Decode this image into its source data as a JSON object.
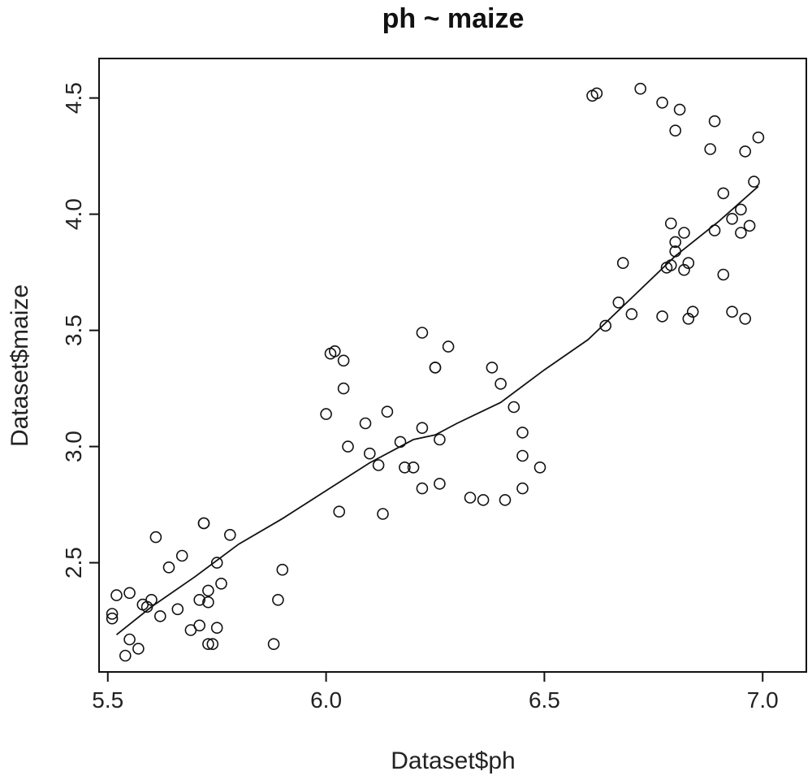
{
  "chart_data": {
    "type": "scatter",
    "title": "ph ~ maize",
    "xlabel": "Dataset$ph",
    "ylabel": "Dataset$maize",
    "xlim": [
      5.48,
      7.1
    ],
    "ylim": [
      2.03,
      4.67
    ],
    "x_ticks": [
      5.5,
      6.0,
      6.5,
      7.0
    ],
    "x_tick_labels": [
      "5.5",
      "6.0",
      "6.5",
      "7.0"
    ],
    "y_ticks": [
      2.5,
      3.0,
      3.5,
      4.0,
      4.5
    ],
    "y_tick_labels": [
      "2.5",
      "3.0",
      "3.5",
      "4.0",
      "4.5"
    ],
    "grid": false,
    "series": [
      {
        "name": "observations",
        "kind": "points",
        "points": [
          [
            5.51,
            2.28
          ],
          [
            5.51,
            2.26
          ],
          [
            5.52,
            2.36
          ],
          [
            5.54,
            2.1
          ],
          [
            5.55,
            2.17
          ],
          [
            5.55,
            2.37
          ],
          [
            5.57,
            2.13
          ],
          [
            5.58,
            2.32
          ],
          [
            5.59,
            2.31
          ],
          [
            5.6,
            2.34
          ],
          [
            5.61,
            2.61
          ],
          [
            5.62,
            2.27
          ],
          [
            5.64,
            2.48
          ],
          [
            5.66,
            2.3
          ],
          [
            5.67,
            2.53
          ],
          [
            5.69,
            2.21
          ],
          [
            5.71,
            2.23
          ],
          [
            5.71,
            2.34
          ],
          [
            5.72,
            2.67
          ],
          [
            5.72,
            2.67
          ],
          [
            5.73,
            2.15
          ],
          [
            5.73,
            2.33
          ],
          [
            5.73,
            2.38
          ],
          [
            5.74,
            2.15
          ],
          [
            5.75,
            2.5
          ],
          [
            5.75,
            2.22
          ],
          [
            5.76,
            2.41
          ],
          [
            5.78,
            2.62
          ],
          [
            5.88,
            2.15
          ],
          [
            5.89,
            2.34
          ],
          [
            5.9,
            2.47
          ],
          [
            6.0,
            3.14
          ],
          [
            6.01,
            3.4
          ],
          [
            6.02,
            3.41
          ],
          [
            6.03,
            2.72
          ],
          [
            6.04,
            3.37
          ],
          [
            6.04,
            3.25
          ],
          [
            6.05,
            3.0
          ],
          [
            6.09,
            3.1
          ],
          [
            6.1,
            2.97
          ],
          [
            6.12,
            2.92
          ],
          [
            6.13,
            2.71
          ],
          [
            6.14,
            3.15
          ],
          [
            6.17,
            3.02
          ],
          [
            6.18,
            2.91
          ],
          [
            6.2,
            2.91
          ],
          [
            6.22,
            3.08
          ],
          [
            6.22,
            2.82
          ],
          [
            6.22,
            3.49
          ],
          [
            6.25,
            3.34
          ],
          [
            6.25,
            3.34
          ],
          [
            6.26,
            3.03
          ],
          [
            6.26,
            2.84
          ],
          [
            6.28,
            3.43
          ],
          [
            6.33,
            2.78
          ],
          [
            6.36,
            2.77
          ],
          [
            6.38,
            3.34
          ],
          [
            6.4,
            3.27
          ],
          [
            6.41,
            2.77
          ],
          [
            6.43,
            3.17
          ],
          [
            6.45,
            3.06
          ],
          [
            6.45,
            2.96
          ],
          [
            6.45,
            2.82
          ],
          [
            6.49,
            2.91
          ],
          [
            6.61,
            4.51
          ],
          [
            6.62,
            4.52
          ],
          [
            6.64,
            3.52
          ],
          [
            6.67,
            3.62
          ],
          [
            6.68,
            3.79
          ],
          [
            6.7,
            3.57
          ],
          [
            6.72,
            4.54
          ],
          [
            6.77,
            3.56
          ],
          [
            6.77,
            4.48
          ],
          [
            6.78,
            3.77
          ],
          [
            6.79,
            3.78
          ],
          [
            6.79,
            3.96
          ],
          [
            6.8,
            3.88
          ],
          [
            6.8,
            3.84
          ],
          [
            6.8,
            4.36
          ],
          [
            6.81,
            4.45
          ],
          [
            6.82,
            3.92
          ],
          [
            6.82,
            3.76
          ],
          [
            6.83,
            3.55
          ],
          [
            6.83,
            3.79
          ],
          [
            6.84,
            3.58
          ],
          [
            6.88,
            4.28
          ],
          [
            6.89,
            3.93
          ],
          [
            6.89,
            4.4
          ],
          [
            6.91,
            4.09
          ],
          [
            6.91,
            3.74
          ],
          [
            6.93,
            3.98
          ],
          [
            6.93,
            3.58
          ],
          [
            6.95,
            3.92
          ],
          [
            6.95,
            4.02
          ],
          [
            6.96,
            4.27
          ],
          [
            6.96,
            3.55
          ],
          [
            6.97,
            3.95
          ],
          [
            6.98,
            4.14
          ],
          [
            6.99,
            4.33
          ]
        ]
      },
      {
        "name": "smoother",
        "kind": "line",
        "points": [
          [
            5.52,
            2.19
          ],
          [
            5.6,
            2.31
          ],
          [
            5.7,
            2.44
          ],
          [
            5.8,
            2.58
          ],
          [
            5.9,
            2.69
          ],
          [
            6.0,
            2.81
          ],
          [
            6.1,
            2.93
          ],
          [
            6.2,
            3.03
          ],
          [
            6.25,
            3.05
          ],
          [
            6.3,
            3.1
          ],
          [
            6.4,
            3.19
          ],
          [
            6.5,
            3.33
          ],
          [
            6.6,
            3.46
          ],
          [
            6.7,
            3.64
          ],
          [
            6.8,
            3.82
          ],
          [
            6.9,
            3.97
          ],
          [
            6.99,
            4.12
          ]
        ]
      }
    ]
  }
}
